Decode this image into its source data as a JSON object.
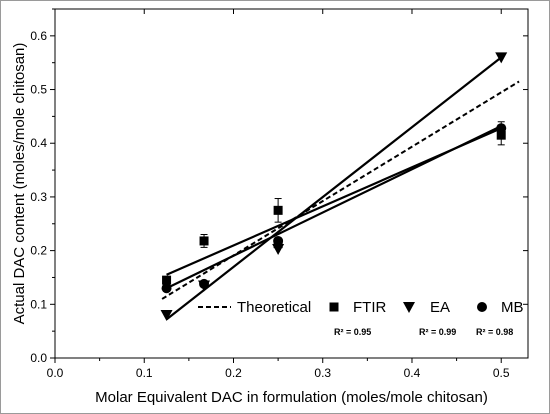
{
  "chart_data": {
    "type": "scatter",
    "title": "",
    "xlabel": "Molar Equivalent DAC in formulation (moles/mole chitosan)",
    "ylabel": "Actual DAC content (moles/mole chitosan)",
    "xlim": [
      0.0,
      0.53
    ],
    "ylim": [
      0.0,
      0.65
    ],
    "xticks": [
      "0.0",
      "0.1",
      "0.2",
      "0.3",
      "0.4",
      "0.5"
    ],
    "yticks": [
      "0.0",
      "0.1",
      "0.2",
      "0.3",
      "0.4",
      "0.5",
      "0.6"
    ],
    "grid": false,
    "legend_position": "bottom-right",
    "series": [
      {
        "name": "FTIR",
        "marker": "square",
        "x": [
          0.125,
          0.167,
          0.25,
          0.25,
          0.5
        ],
        "y": [
          0.145,
          0.218,
          0.275,
          0.213,
          0.415
        ],
        "err": [
          0.006,
          0.012,
          0.022,
          0.008,
          0.018
        ],
        "fit": {
          "x": [
            0.125,
            0.5
          ],
          "y": [
            0.155,
            0.428
          ]
        },
        "r2": "R² = 0.95"
      },
      {
        "name": "EA",
        "marker": "triangle-down",
        "x": [
          0.125,
          0.167,
          0.25,
          0.5
        ],
        "y": [
          0.08,
          0.135,
          0.203,
          0.56
        ],
        "err": [
          0.0,
          0.0,
          0.0,
          0.0
        ],
        "fit": {
          "x": [
            0.125,
            0.5
          ],
          "y": [
            0.072,
            0.56
          ]
        },
        "r2": "R² = 0.99"
      },
      {
        "name": "MB",
        "marker": "circle",
        "x": [
          0.125,
          0.167,
          0.25,
          0.5
        ],
        "y": [
          0.13,
          0.138,
          0.218,
          0.428
        ],
        "err": [
          0.005,
          0.004,
          0.005,
          0.012
        ],
        "fit": {
          "x": [
            0.125,
            0.5
          ],
          "y": [
            0.13,
            0.432
          ]
        },
        "r2": "R² = 0.98"
      },
      {
        "name": "Theoretical",
        "line_style": "dashed",
        "x": [
          0.12,
          0.52
        ],
        "y": [
          0.11,
          0.515
        ]
      }
    ]
  },
  "colors": {
    "ink": "#000000",
    "frame": "#9a9a9a"
  }
}
